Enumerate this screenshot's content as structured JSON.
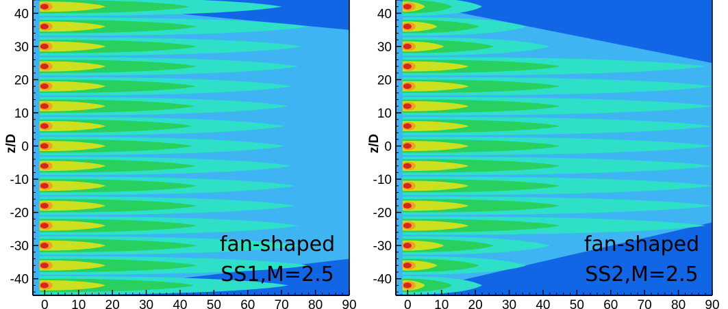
{
  "chart_data": [
    {
      "type": "heatmap",
      "xlabel": "",
      "ylabel": "z/D",
      "xlim": [
        -3.5,
        90
      ],
      "ylim": [
        -45,
        44
      ],
      "x_ticks": [
        "0",
        "10",
        "20",
        "30",
        "40",
        "50",
        "60",
        "70",
        "80",
        "90"
      ],
      "y_ticks": [
        "40",
        "30",
        "20",
        "10",
        "0",
        "-10",
        "-20",
        "-30",
        "-40"
      ],
      "annotation": [
        "fan-shaped",
        "SS1,M=2.5"
      ],
      "jet_rows_z": [
        42,
        36,
        30,
        24,
        18,
        12,
        6,
        0,
        -6,
        -12,
        -18,
        -24,
        -30,
        -36,
        -42
      ],
      "jet_lengths_x": [
        70,
        78,
        76,
        75,
        73,
        72,
        71,
        71,
        73,
        74,
        74,
        75,
        76,
        78,
        72
      ],
      "envelope": {
        "left_z": [
          44,
          -45
        ],
        "right_z": [
          35,
          -34
        ]
      },
      "colors": {
        "background": "#1166e6",
        "envelope": "#3fb4f2",
        "core_hot": "#d4261f",
        "core_warm": "#f2a020",
        "core_mid": "#cde020",
        "core_green": "#28d060",
        "outer": "#2ee0c8"
      }
    },
    {
      "type": "heatmap",
      "xlabel": "",
      "ylabel": "z/D",
      "xlim": [
        -3.5,
        90
      ],
      "ylim": [
        -45,
        44
      ],
      "x_ticks": [
        "0",
        "10",
        "20",
        "30",
        "40",
        "50",
        "60",
        "70",
        "80",
        "90"
      ],
      "y_ticks": [
        "40",
        "30",
        "20",
        "10",
        "0",
        "-10",
        "-20",
        "-30",
        "-40"
      ],
      "annotation": [
        "fan-shaped",
        "SS2,M=2.5"
      ],
      "jet_rows_z": [
        42,
        36,
        30,
        24,
        18,
        12,
        6,
        0,
        -6,
        -12,
        -18,
        -24,
        -30,
        -36,
        -42
      ],
      "jet_lengths_x": [
        22,
        35,
        42,
        88,
        90,
        90,
        90,
        90,
        90,
        90,
        90,
        88,
        42,
        35,
        22
      ],
      "envelope": {
        "left_z": [
          44,
          -45
        ],
        "right_z": [
          25,
          -23
        ]
      },
      "colors": {
        "background": "#1166e6",
        "envelope": "#3fb4f2",
        "core_hot": "#d4261f",
        "core_warm": "#f2a020",
        "core_mid": "#cde020",
        "core_green": "#28d060",
        "outer": "#2ee0c8"
      }
    }
  ]
}
